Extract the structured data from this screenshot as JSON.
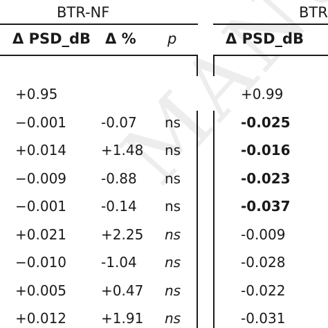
{
  "groups": [
    {
      "title": "BTR-NF"
    },
    {
      "title": "BTR"
    }
  ],
  "headers": {
    "left": {
      "psd": "Δ PSD_dB",
      "pct": "Δ %",
      "p": "p"
    },
    "right": {
      "psd": "Δ PSD_dB"
    }
  },
  "left_rows": [
    {
      "psd": "+0.95",
      "pct": "",
      "p": ""
    },
    {
      "psd": "−0.001",
      "pct": "-0.07",
      "p": "ns"
    },
    {
      "psd": "+0.014",
      "pct": "+1.48",
      "p": "ns"
    },
    {
      "psd": "−0.009",
      "pct": "-0.88",
      "p": "ns"
    },
    {
      "psd": "−0.001",
      "pct": "-0.14",
      "p": "ns"
    },
    {
      "psd": "+0.021",
      "pct": "+2.25",
      "p": "ns"
    },
    {
      "psd": "−0.010",
      "pct": "-1.04",
      "p": "ns"
    },
    {
      "psd": "+0.005",
      "pct": "+0.47",
      "p": "ns"
    },
    {
      "psd": "+0.012",
      "pct": "+1.91",
      "p": "ns"
    }
  ],
  "right_rows": [
    {
      "psd": "+0.99"
    },
    {
      "psd": "-0.025"
    },
    {
      "psd": "-0.016"
    },
    {
      "psd": "-0.023"
    },
    {
      "psd": "-0.037"
    },
    {
      "psd": "-0.009"
    },
    {
      "psd": "-0.028"
    },
    {
      "psd": "-0.022"
    },
    {
      "psd": "-0.031"
    }
  ],
  "watermark": "MANUSC"
}
